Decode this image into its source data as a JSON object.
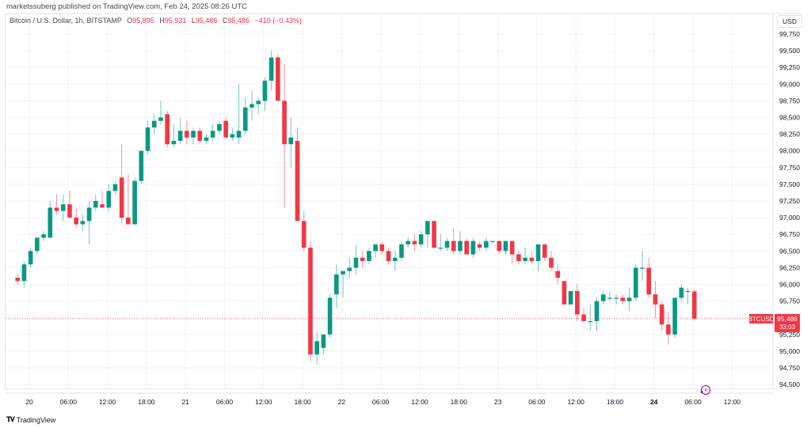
{
  "header": {
    "publisher": "marketssuberg published on TradingView.com, Feb 24, 2025 08:26 UTC"
  },
  "legend": {
    "symbol": "Bitcoin / U.S. Dollar, 1h, BITSTAMP",
    "o_label": "O",
    "o_value": "95,895",
    "h_label": "H",
    "h_value": "95,931",
    "l_label": "L",
    "l_value": "95,486",
    "c_label": "C",
    "c_value": "95,486",
    "change": "−410 (−0.43%)"
  },
  "price_axis": {
    "currency": "USD",
    "ticks": [
      "99,750",
      "99,500",
      "99,250",
      "99,000",
      "98,750",
      "98,500",
      "98,250",
      "98,000",
      "97,750",
      "97,500",
      "97,250",
      "97,000",
      "96,750",
      "96,500",
      "96,250",
      "96,000",
      "95,750",
      "95,500",
      "95,250",
      "95,000",
      "94,750",
      "94,500"
    ]
  },
  "last_price": {
    "symbol_label": "BTCUSD",
    "price": "95,486",
    "countdown": "33:03"
  },
  "time_axis": {
    "ticks": [
      "20",
      "06:00",
      "12:00",
      "18:00",
      "21",
      "06:00",
      "12:00",
      "18:00",
      "22",
      "06:00",
      "12:00",
      "18:00",
      "23",
      "06:00",
      "12:00",
      "18:00",
      "24",
      "06:00",
      "12:00"
    ]
  },
  "footer": {
    "brand": "TradingView"
  },
  "colors": {
    "up": "#089981",
    "down": "#f23645",
    "grid": "#f0f3fa",
    "text": "#131722"
  },
  "chart_data": {
    "type": "candlestick",
    "title": "Bitcoin / U.S. Dollar, 1h, BITSTAMP",
    "xlabel": "",
    "ylabel": "USD",
    "ylim": [
      94400,
      99900
    ],
    "grid": true,
    "x_start": "Feb 19 23:00",
    "interval": "1h",
    "ohlc": [
      [
        96100,
        96150,
        96000,
        96050
      ],
      [
        96050,
        96350,
        95950,
        96300
      ],
      [
        96300,
        96550,
        96250,
        96500
      ],
      [
        96500,
        96700,
        96450,
        96700
      ],
      [
        96700,
        96800,
        96650,
        96750
      ],
      [
        96700,
        97250,
        96750,
        97150
      ],
      [
        97150,
        97350,
        97050,
        97100
      ],
      [
        97100,
        97350,
        96950,
        97200
      ],
      [
        97200,
        97400,
        97100,
        97000
      ],
      [
        97000,
        97150,
        96850,
        96900
      ],
      [
        96900,
        97050,
        96800,
        96950
      ],
      [
        96950,
        97250,
        96600,
        97150
      ],
      [
        97150,
        97350,
        97100,
        97250
      ],
      [
        97200,
        97400,
        97150,
        97150
      ],
      [
        97150,
        97500,
        97100,
        97400
      ],
      [
        97400,
        97550,
        97350,
        97500
      ],
      [
        97600,
        98100,
        96900,
        97000
      ],
      [
        97000,
        97650,
        96900,
        96900
      ],
      [
        96900,
        97600,
        96900,
        97550
      ],
      [
        97550,
        98000,
        97500,
        98000
      ],
      [
        98000,
        98450,
        97950,
        98350
      ],
      [
        98350,
        98550,
        98250,
        98450
      ],
      [
        98450,
        98750,
        98400,
        98500
      ],
      [
        98550,
        98600,
        98050,
        98100
      ],
      [
        98100,
        98400,
        98050,
        98150
      ],
      [
        98150,
        98500,
        98100,
        98300
      ],
      [
        98300,
        98450,
        98100,
        98200
      ],
      [
        98200,
        98350,
        98100,
        98300
      ],
      [
        98300,
        98350,
        98100,
        98150
      ],
      [
        98150,
        98250,
        98100,
        98200
      ],
      [
        98200,
        98400,
        98150,
        98300
      ],
      [
        98300,
        98450,
        98250,
        98400
      ],
      [
        98450,
        98500,
        98200,
        98200
      ],
      [
        98200,
        98350,
        98150,
        98250
      ],
      [
        98200,
        99000,
        98100,
        98300
      ],
      [
        98300,
        98800,
        98250,
        98650
      ],
      [
        98650,
        98900,
        98450,
        98700
      ],
      [
        98700,
        98800,
        98550,
        98750
      ],
      [
        98750,
        99100,
        98600,
        99050
      ],
      [
        99050,
        99500,
        98900,
        99400
      ],
      [
        99400,
        99450,
        98750,
        98750
      ],
      [
        98750,
        99300,
        97150,
        98100
      ],
      [
        98100,
        98500,
        97750,
        98200
      ],
      [
        98150,
        98350,
        96950,
        96950
      ],
      [
        96950,
        97100,
        96500,
        96550
      ],
      [
        96550,
        96650,
        94850,
        94950
      ],
      [
        94950,
        95300,
        94800,
        95150
      ],
      [
        95050,
        95250,
        94950,
        95250
      ],
      [
        95250,
        95850,
        95200,
        95800
      ],
      [
        95850,
        96300,
        95650,
        96150
      ],
      [
        96150,
        96200,
        95800,
        96200
      ],
      [
        96200,
        96400,
        96100,
        96250
      ],
      [
        96250,
        96600,
        96150,
        96400
      ],
      [
        96400,
        96500,
        96250,
        96350
      ],
      [
        96350,
        96550,
        96300,
        96500
      ],
      [
        96500,
        96600,
        96400,
        96600
      ],
      [
        96600,
        96650,
        96450,
        96500
      ],
      [
        96500,
        96550,
        96300,
        96350
      ],
      [
        96350,
        96500,
        96200,
        96400
      ],
      [
        96400,
        96650,
        96350,
        96600
      ],
      [
        96600,
        96700,
        96550,
        96650
      ],
      [
        96650,
        96750,
        96500,
        96600
      ],
      [
        96600,
        96800,
        96550,
        96750
      ],
      [
        96750,
        96950,
        96550,
        96950
      ],
      [
        96950,
        96900,
        96550,
        96550
      ],
      [
        96550,
        96750,
        96500,
        96550
      ],
      [
        96550,
        96700,
        96500,
        96650
      ],
      [
        96650,
        96850,
        96450,
        96500
      ],
      [
        96500,
        96800,
        96450,
        96650
      ],
      [
        96650,
        96700,
        96450,
        96450
      ],
      [
        96450,
        96700,
        96400,
        96650
      ],
      [
        96600,
        96650,
        96500,
        96550
      ],
      [
        96550,
        96700,
        96500,
        96650
      ],
      [
        96650,
        96650,
        96600,
        96650
      ],
      [
        96650,
        96650,
        96450,
        96500
      ],
      [
        96500,
        96650,
        96450,
        96650
      ],
      [
        96650,
        96650,
        96300,
        96450
      ],
      [
        96450,
        96500,
        96300,
        96350
      ],
      [
        96350,
        96550,
        96300,
        96400
      ],
      [
        96400,
        96500,
        96300,
        96350
      ],
      [
        96350,
        96600,
        96200,
        96600
      ],
      [
        96600,
        96600,
        96350,
        96400
      ],
      [
        96400,
        96500,
        96200,
        96250
      ],
      [
        96200,
        96300,
        96000,
        96100
      ],
      [
        96050,
        96050,
        95700,
        95700
      ],
      [
        95700,
        95900,
        95700,
        95900
      ],
      [
        95900,
        96000,
        95450,
        95550
      ],
      [
        95550,
        95650,
        95450,
        95450
      ],
      [
        95450,
        95700,
        95300,
        95450
      ],
      [
        95450,
        95800,
        95300,
        95750
      ],
      [
        95750,
        95900,
        95700,
        95850
      ],
      [
        95800,
        95900,
        95750,
        95800
      ],
      [
        95800,
        95850,
        95700,
        95800
      ],
      [
        95800,
        95850,
        95700,
        95750
      ],
      [
        95750,
        95950,
        95600,
        95800
      ],
      [
        95800,
        96300,
        95750,
        96250
      ],
      [
        96250,
        96500,
        96050,
        96250
      ],
      [
        96250,
        96400,
        95800,
        95850
      ],
      [
        95850,
        96050,
        95500,
        95700
      ],
      [
        95700,
        95750,
        95300,
        95400
      ],
      [
        95400,
        95600,
        95100,
        95250
      ],
      [
        95250,
        95800,
        95200,
        95800
      ],
      [
        95800,
        96000,
        95750,
        95950
      ],
      [
        95900,
        95950,
        95700,
        95900
      ],
      [
        95895,
        95931,
        95486,
        95486
      ]
    ]
  }
}
